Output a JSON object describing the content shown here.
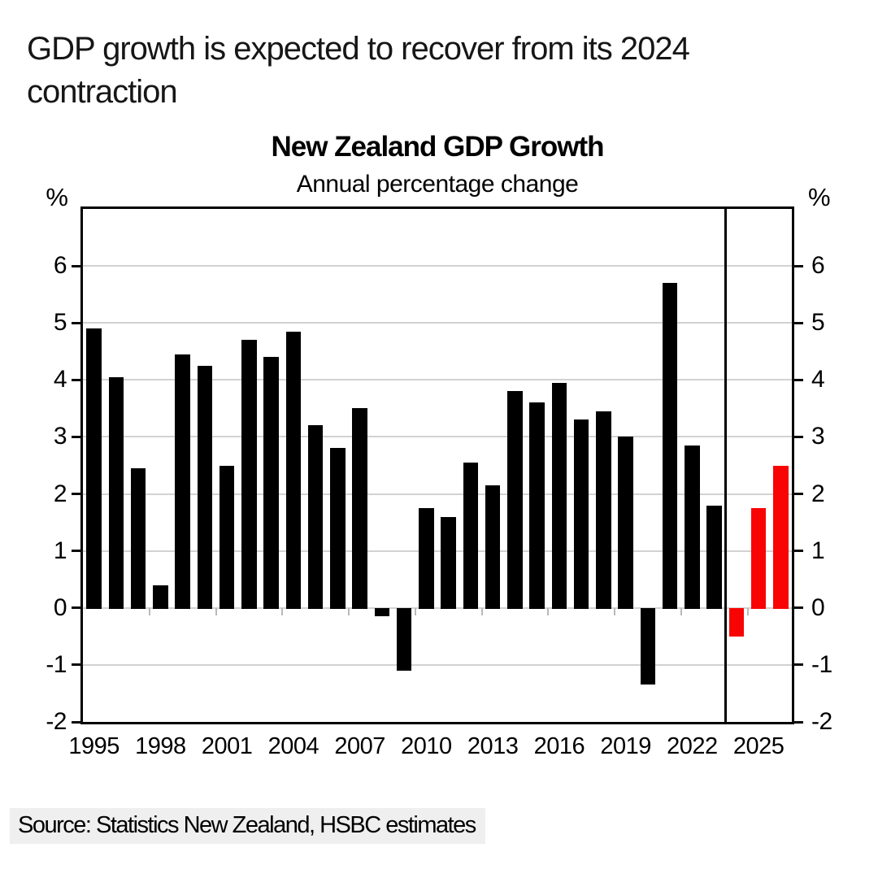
{
  "page": {
    "heading_line1": "GDP growth is expected to recover from its 2024",
    "heading_line2": "contraction",
    "source": "Source: Statistics New Zealand, HSBC estimates"
  },
  "chart_data": {
    "type": "bar",
    "title": "New Zealand GDP Growth",
    "subtitle": "Annual percentage change",
    "unit": "%",
    "ylim": [
      -2,
      7
    ],
    "yticks": [
      6,
      5,
      4,
      3,
      2,
      1,
      0,
      -1,
      -2
    ],
    "grid": true,
    "legend": "none",
    "xtick_label_years": [
      1995,
      1998,
      2001,
      2004,
      2007,
      2010,
      2013,
      2016,
      2019,
      2022,
      2025
    ],
    "categories": [
      1995,
      1996,
      1997,
      1998,
      1999,
      2000,
      2001,
      2002,
      2003,
      2004,
      2005,
      2006,
      2007,
      2008,
      2009,
      2010,
      2011,
      2012,
      2013,
      2014,
      2015,
      2016,
      2017,
      2018,
      2019,
      2020,
      2021,
      2022,
      2023,
      2024,
      2025,
      2026
    ],
    "values": [
      4.9,
      4.05,
      2.45,
      0.4,
      4.45,
      4.25,
      2.5,
      4.7,
      4.4,
      4.85,
      3.2,
      2.8,
      3.5,
      -0.15,
      -1.1,
      1.75,
      1.6,
      2.55,
      2.15,
      3.8,
      3.6,
      3.95,
      3.3,
      3.45,
      3.0,
      -1.35,
      5.7,
      2.85,
      1.8,
      -0.5,
      1.75,
      2.5
    ],
    "forecast_start_year": 2024,
    "colors": {
      "actual": "#000000",
      "forecast": "#f90404",
      "gridline": "#d2d2d2",
      "frame": "#000000"
    }
  }
}
